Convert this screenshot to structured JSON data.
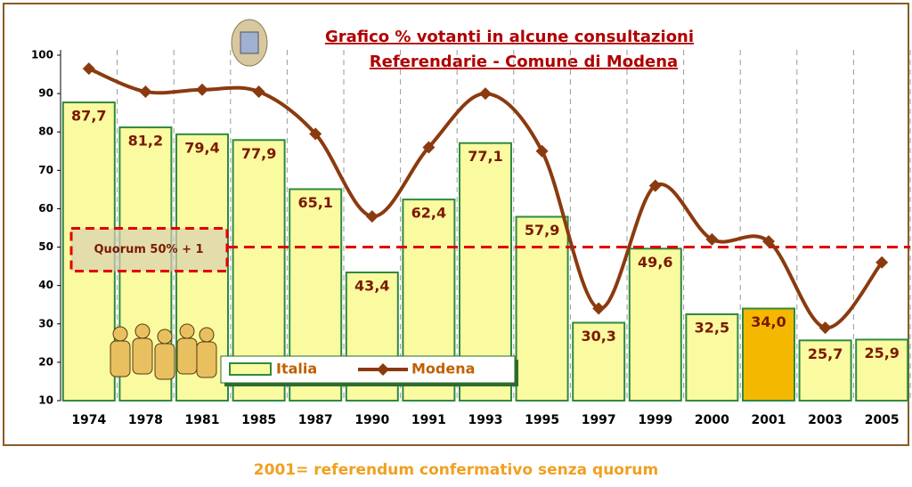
{
  "chart_data": {
    "type": "bar",
    "title": "Grafico % votanti in alcune consultazioni",
    "subtitle": "Referendarie - Comune di Modena",
    "categories": [
      "1974",
      "1978",
      "1981",
      "1985",
      "1987",
      "1990",
      "1991",
      "1993",
      "1995",
      "1997",
      "1999",
      "2000",
      "2001",
      "2003",
      "2005"
    ],
    "series": [
      {
        "name": "Italia",
        "type": "bar",
        "color": "#fafaa0",
        "colors": [
          "#fafaa0",
          "#fafaa0",
          "#fafaa0",
          "#fafaa0",
          "#fafaa0",
          "#fafaa0",
          "#fafaa0",
          "#fafaa0",
          "#fafaa0",
          "#fafaa0",
          "#fafaa0",
          "#fafaa0",
          "#f5b800",
          "#fafaa0",
          "#fafaa0"
        ],
        "values": [
          87.7,
          81.2,
          79.4,
          77.9,
          65.1,
          43.4,
          62.4,
          77.1,
          57.9,
          30.3,
          49.6,
          32.5,
          34.0,
          25.7,
          25.9
        ],
        "value_labels": [
          "87,7",
          "81,2",
          "79,4",
          "77,9",
          "65,1",
          "43,4",
          "62,4",
          "77,1",
          "57,9",
          "30,3",
          "49,6",
          "32,5",
          "34,0",
          "25,7",
          "25,9"
        ]
      },
      {
        "name": "Modena",
        "type": "line",
        "color": "#8b3a0f",
        "values": [
          96.5,
          90.5,
          91,
          90.5,
          79.5,
          58,
          76,
          90,
          75,
          34,
          66,
          52,
          51.5,
          29,
          46
        ]
      }
    ],
    "ylim": [
      10,
      100
    ],
    "yticks": [
      10,
      20,
      30,
      40,
      50,
      60,
      70,
      80,
      90,
      100
    ],
    "quorum": {
      "label": "Quorum 50% + 1",
      "value": 50
    },
    "note": "2001= referendum confermativo senza quorum"
  }
}
